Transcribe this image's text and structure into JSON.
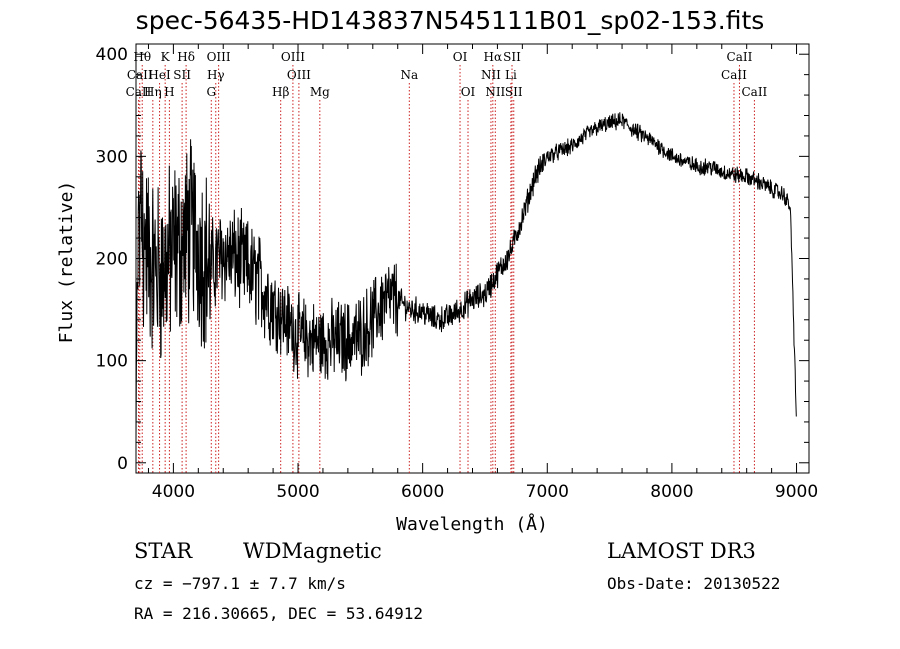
{
  "chart_data": {
    "type": "line",
    "title": "spec-56435-HD143837N545111B01_sp02-153.fits",
    "xlabel": "Wavelength (Å)",
    "ylabel": "Flux (relative)",
    "xlim": [
      3700,
      9100
    ],
    "ylim": [
      -10,
      410
    ],
    "xticks": [
      4000,
      5000,
      6000,
      7000,
      8000,
      9000
    ],
    "yticks": [
      0,
      100,
      200,
      300,
      400
    ],
    "grid": false,
    "series": [
      {
        "name": "spectrum",
        "anchors": [
          [
            3700,
            10
          ],
          [
            3720,
            240
          ],
          [
            3760,
            220
          ],
          [
            3800,
            205
          ],
          [
            3850,
            190
          ],
          [
            3900,
            185
          ],
          [
            3950,
            195
          ],
          [
            4000,
            210
          ],
          [
            4050,
            210
          ],
          [
            4100,
            220
          ],
          [
            4150,
            230
          ],
          [
            4200,
            215
          ],
          [
            4300,
            190
          ],
          [
            4400,
            205
          ],
          [
            4500,
            200
          ],
          [
            4600,
            190
          ],
          [
            4700,
            175
          ],
          [
            4800,
            155
          ],
          [
            4900,
            140
          ],
          [
            5000,
            125
          ],
          [
            5100,
            120
          ],
          [
            5200,
            118
          ],
          [
            5300,
            120
          ],
          [
            5400,
            120
          ],
          [
            5500,
            125
          ],
          [
            5600,
            140
          ],
          [
            5700,
            160
          ],
          [
            5800,
            160
          ],
          [
            5900,
            150
          ],
          [
            6000,
            148
          ],
          [
            6100,
            140
          ],
          [
            6200,
            142
          ],
          [
            6300,
            150
          ],
          [
            6400,
            160
          ],
          [
            6500,
            165
          ],
          [
            6550,
            175
          ],
          [
            6600,
            185
          ],
          [
            6700,
            205
          ],
          [
            6800,
            240
          ],
          [
            6900,
            280
          ],
          [
            7000,
            300
          ],
          [
            7100,
            305
          ],
          [
            7200,
            310
          ],
          [
            7300,
            320
          ],
          [
            7400,
            328
          ],
          [
            7500,
            332
          ],
          [
            7600,
            335
          ],
          [
            7700,
            325
          ],
          [
            7800,
            318
          ],
          [
            7900,
            310
          ],
          [
            8000,
            300
          ],
          [
            8100,
            295
          ],
          [
            8200,
            290
          ],
          [
            8300,
            290
          ],
          [
            8400,
            285
          ],
          [
            8500,
            282
          ],
          [
            8600,
            280
          ],
          [
            8700,
            275
          ],
          [
            8800,
            268
          ],
          [
            8900,
            262
          ],
          [
            8950,
            250
          ],
          [
            9000,
            40
          ]
        ]
      }
    ],
    "lines": [
      {
        "label": "Hθ",
        "x": 3750,
        "row": 0
      },
      {
        "label": "K",
        "x": 3934,
        "row": 0
      },
      {
        "label": "Hδ",
        "x": 4102,
        "row": 0
      },
      {
        "label": "OIII",
        "x": 4363,
        "row": 0
      },
      {
        "label": "OIII",
        "x": 4959,
        "row": 0
      },
      {
        "label": "OI",
        "x": 6300,
        "row": 0
      },
      {
        "label": "Hα",
        "x": 6563,
        "row": 0
      },
      {
        "label": "SII",
        "x": 6717,
        "row": 0
      },
      {
        "label": "CaII",
        "x": 8542,
        "row": 0
      },
      {
        "label": "CaII",
        "x": 3730,
        "row": 1
      },
      {
        "label": "HeI",
        "x": 3889,
        "row": 1
      },
      {
        "label": "SII",
        "x": 4070,
        "row": 1
      },
      {
        "label": "Hγ",
        "x": 4340,
        "row": 1
      },
      {
        "label": "OIII",
        "x": 5007,
        "row": 1
      },
      {
        "label": "Na",
        "x": 5893,
        "row": 1
      },
      {
        "label": "NII",
        "x": 6548,
        "row": 1
      },
      {
        "label": "Li",
        "x": 6708,
        "row": 1
      },
      {
        "label": "CaII",
        "x": 8498,
        "row": 1
      },
      {
        "label": "CaII",
        "x": 3720,
        "row": 2
      },
      {
        "label": "Hη",
        "x": 3835,
        "row": 2
      },
      {
        "label": "H",
        "x": 3968,
        "row": 2
      },
      {
        "label": "G",
        "x": 4304,
        "row": 2
      },
      {
        "label": "Hβ",
        "x": 4861,
        "row": 2
      },
      {
        "label": "Mg",
        "x": 5175,
        "row": 2
      },
      {
        "label": "OI",
        "x": 6364,
        "row": 2
      },
      {
        "label": "NII",
        "x": 6583,
        "row": 2
      },
      {
        "label": "SII",
        "x": 6731,
        "row": 2
      },
      {
        "label": "CaII",
        "x": 8662,
        "row": 2
      }
    ]
  },
  "info": {
    "object_class": "STAR",
    "subclass": "WDMagnetic",
    "survey": "LAMOST DR3",
    "cz": "cz = −797.1 ± 7.7 km/s",
    "obs_date": "Obs-Date: 20130522",
    "coords": "RA = 216.30665, DEC =  53.64912"
  }
}
